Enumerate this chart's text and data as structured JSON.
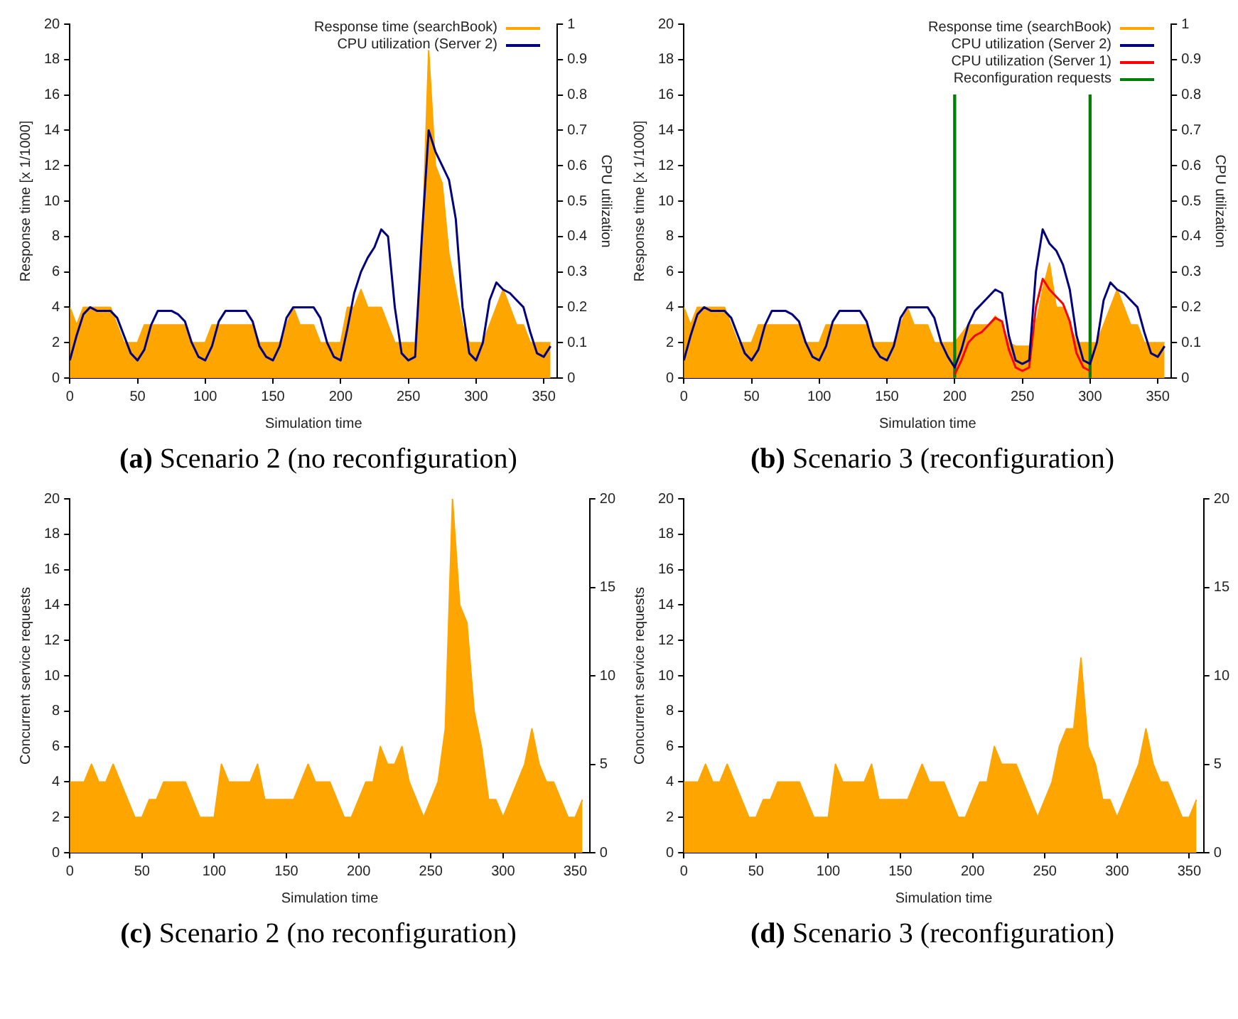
{
  "chart_data": [
    {
      "type": "area",
      "title": "(a) Scenario 2 (no reconfiguration)",
      "xlabel": "Simulation time",
      "ylabel": "Response time [x 1/1000]",
      "y2label": "CPU utilization",
      "xlim": [
        0,
        360
      ],
      "xticks": [
        0,
        50,
        100,
        150,
        200,
        250,
        300,
        350
      ],
      "ylim": [
        0,
        20
      ],
      "yticks": [
        0,
        2,
        4,
        6,
        8,
        10,
        12,
        14,
        16,
        18,
        20
      ],
      "y2lim": [
        0,
        1
      ],
      "y2ticks": [
        0,
        0.1,
        0.2,
        0.3,
        0.4,
        0.5,
        0.6,
        0.7,
        0.8,
        0.9,
        1
      ],
      "legend": "top right",
      "x": [
        0,
        5,
        10,
        15,
        20,
        25,
        30,
        35,
        40,
        45,
        50,
        55,
        60,
        65,
        70,
        75,
        80,
        85,
        90,
        95,
        100,
        105,
        110,
        115,
        120,
        125,
        130,
        135,
        140,
        145,
        150,
        155,
        160,
        165,
        170,
        175,
        180,
        185,
        190,
        195,
        200,
        205,
        210,
        215,
        220,
        225,
        230,
        235,
        240,
        245,
        250,
        255,
        260,
        265,
        270,
        275,
        280,
        285,
        290,
        295,
        300,
        305,
        310,
        315,
        320,
        325,
        330,
        335,
        340,
        345,
        350,
        355
      ],
      "series": [
        {
          "name": "Response time (searchBook)",
          "color": "#ffa500",
          "values": [
            4,
            3,
            4,
            4,
            4,
            4,
            4,
            3,
            2,
            2,
            2,
            3,
            3,
            3,
            3,
            3,
            3,
            3,
            2,
            2,
            2,
            3,
            3,
            3,
            3,
            3,
            3,
            3,
            2,
            2,
            2,
            2,
            3,
            4,
            3,
            3,
            3,
            2,
            2,
            2,
            2,
            4,
            4,
            5,
            4,
            4,
            4,
            3,
            2,
            2,
            2,
            2,
            7,
            18.5,
            12,
            11,
            7,
            5,
            3,
            2,
            2,
            2,
            3,
            4,
            5,
            4,
            3,
            3,
            2,
            2,
            2,
            2
          ]
        },
        {
          "name": "CPU utilization (Server 2)",
          "type": "line",
          "axis": "y2",
          "color": "#000080",
          "values": [
            0.05,
            0.12,
            0.18,
            0.2,
            0.19,
            0.19,
            0.19,
            0.17,
            0.12,
            0.07,
            0.05,
            0.08,
            0.15,
            0.19,
            0.19,
            0.19,
            0.18,
            0.16,
            0.1,
            0.06,
            0.05,
            0.09,
            0.16,
            0.19,
            0.19,
            0.19,
            0.19,
            0.16,
            0.09,
            0.06,
            0.05,
            0.09,
            0.17,
            0.2,
            0.2,
            0.2,
            0.2,
            0.17,
            0.1,
            0.06,
            0.05,
            0.14,
            0.24,
            0.3,
            0.34,
            0.37,
            0.42,
            0.4,
            0.2,
            0.07,
            0.05,
            0.06,
            0.4,
            0.7,
            0.64,
            0.6,
            0.56,
            0.45,
            0.2,
            0.07,
            0.05,
            0.1,
            0.22,
            0.27,
            0.25,
            0.24,
            0.22,
            0.2,
            0.13,
            0.07,
            0.06,
            0.09
          ]
        }
      ]
    },
    {
      "type": "area",
      "title": "(b) Scenario 3 (reconfiguration)",
      "xlabel": "Simulation time",
      "ylabel": "Response time [x 1/1000]",
      "y2label": "CPU utilization",
      "xlim": [
        0,
        360
      ],
      "xticks": [
        0,
        50,
        100,
        150,
        200,
        250,
        300,
        350
      ],
      "ylim": [
        0,
        20
      ],
      "yticks": [
        0,
        2,
        4,
        6,
        8,
        10,
        12,
        14,
        16,
        18,
        20
      ],
      "y2lim": [
        0,
        1
      ],
      "y2ticks": [
        0,
        0.1,
        0.2,
        0.3,
        0.4,
        0.5,
        0.6,
        0.7,
        0.8,
        0.9,
        1
      ],
      "legend": "top right",
      "x": [
        0,
        5,
        10,
        15,
        20,
        25,
        30,
        35,
        40,
        45,
        50,
        55,
        60,
        65,
        70,
        75,
        80,
        85,
        90,
        95,
        100,
        105,
        110,
        115,
        120,
        125,
        130,
        135,
        140,
        145,
        150,
        155,
        160,
        165,
        170,
        175,
        180,
        185,
        190,
        195,
        200,
        205,
        210,
        215,
        220,
        225,
        230,
        235,
        240,
        245,
        250,
        255,
        260,
        265,
        270,
        275,
        280,
        285,
        290,
        295,
        300,
        305,
        310,
        315,
        320,
        325,
        330,
        335,
        340,
        345,
        350,
        355
      ],
      "series": [
        {
          "name": "Response time (searchBook)",
          "color": "#ffa500",
          "values": [
            4,
            3,
            4,
            4,
            4,
            4,
            4,
            3,
            2,
            2,
            2,
            3,
            3,
            3,
            3,
            3,
            3,
            3,
            2,
            2,
            2,
            3,
            3,
            3,
            3,
            3,
            3,
            3,
            2,
            2,
            2,
            2,
            3,
            4,
            3,
            3,
            3,
            2,
            2,
            2,
            2,
            2.5,
            3,
            3,
            3,
            3,
            3.5,
            3,
            2,
            1.8,
            1.8,
            1.8,
            3,
            5,
            6.5,
            4,
            4,
            3,
            2,
            2,
            2,
            2,
            3,
            4,
            5,
            4,
            3,
            3,
            2,
            2,
            2,
            2
          ]
        },
        {
          "name": "CPU utilization (Server 2)",
          "type": "line",
          "axis": "y2",
          "color": "#000080",
          "values": [
            0.05,
            0.12,
            0.18,
            0.2,
            0.19,
            0.19,
            0.19,
            0.17,
            0.12,
            0.07,
            0.05,
            0.08,
            0.15,
            0.19,
            0.19,
            0.19,
            0.18,
            0.16,
            0.1,
            0.06,
            0.05,
            0.09,
            0.16,
            0.19,
            0.19,
            0.19,
            0.19,
            0.16,
            0.09,
            0.06,
            0.05,
            0.09,
            0.17,
            0.2,
            0.2,
            0.2,
            0.2,
            0.17,
            0.1,
            0.06,
            0.03,
            0.08,
            0.15,
            0.19,
            0.21,
            0.23,
            0.25,
            0.24,
            0.12,
            0.05,
            0.04,
            0.05,
            0.3,
            0.42,
            0.38,
            0.36,
            0.32,
            0.25,
            0.12,
            0.05,
            0.04,
            0.1,
            0.22,
            0.27,
            0.25,
            0.24,
            0.22,
            0.2,
            0.13,
            0.07,
            0.06,
            0.09
          ]
        },
        {
          "name": "CPU utilization (Server 1)",
          "type": "line",
          "axis": "y2",
          "color": "#ff0000",
          "x": [
            200,
            205,
            210,
            215,
            220,
            225,
            230,
            235,
            240,
            245,
            250,
            255,
            260,
            265,
            270,
            275,
            280,
            285,
            290,
            295,
            300
          ],
          "values": [
            0.01,
            0.05,
            0.1,
            0.12,
            0.13,
            0.15,
            0.17,
            0.16,
            0.08,
            0.03,
            0.02,
            0.03,
            0.2,
            0.28,
            0.25,
            0.23,
            0.21,
            0.16,
            0.07,
            0.03,
            0.02
          ]
        },
        {
          "name": "Reconfiguration requests",
          "type": "bar",
          "color": "#008000",
          "x": [
            200,
            300
          ],
          "values": [
            16,
            16
          ]
        }
      ]
    },
    {
      "type": "area",
      "title": "(c) Scenario 2 (no reconfiguration)",
      "xlabel": "Simulation time",
      "ylabel": "Concurrent service requests",
      "xlim": [
        0,
        360
      ],
      "xticks": [
        0,
        50,
        100,
        150,
        200,
        250,
        300,
        350
      ],
      "ylim": [
        0,
        20
      ],
      "yticks": [
        0,
        2,
        4,
        6,
        8,
        10,
        12,
        14,
        16,
        18,
        20
      ],
      "y2lim": [
        0,
        20
      ],
      "y2ticks": [
        0,
        5,
        10,
        15,
        20
      ],
      "x": [
        0,
        5,
        10,
        15,
        20,
        25,
        30,
        35,
        40,
        45,
        50,
        55,
        60,
        65,
        70,
        75,
        80,
        85,
        90,
        95,
        100,
        105,
        110,
        115,
        120,
        125,
        130,
        135,
        140,
        145,
        150,
        155,
        160,
        165,
        170,
        175,
        180,
        185,
        190,
        195,
        200,
        205,
        210,
        215,
        220,
        225,
        230,
        235,
        240,
        245,
        250,
        255,
        260,
        265,
        270,
        275,
        280,
        285,
        290,
        295,
        300,
        305,
        310,
        315,
        320,
        325,
        330,
        335,
        340,
        345,
        350,
        355
      ],
      "series": [
        {
          "color": "#ffa500",
          "values": [
            4,
            4,
            4,
            5,
            4,
            4,
            5,
            4,
            3,
            2,
            2,
            3,
            3,
            4,
            4,
            4,
            4,
            3,
            2,
            2,
            2,
            5,
            4,
            4,
            4,
            4,
            5,
            3,
            3,
            3,
            3,
            3,
            4,
            5,
            4,
            4,
            4,
            3,
            2,
            2,
            3,
            4,
            4,
            6,
            5,
            5,
            6,
            4,
            3,
            2,
            3,
            4,
            7,
            20,
            14,
            13,
            8,
            6,
            3,
            3,
            2,
            3,
            4,
            5,
            7,
            5,
            4,
            4,
            3,
            2,
            2,
            3
          ]
        }
      ]
    },
    {
      "type": "area",
      "title": "(d) Scenario 3 (reconfiguration)",
      "xlabel": "Simulation time",
      "ylabel": "Concurrent service requests",
      "xlim": [
        0,
        360
      ],
      "xticks": [
        0,
        50,
        100,
        150,
        200,
        250,
        300,
        350
      ],
      "ylim": [
        0,
        20
      ],
      "yticks": [
        0,
        2,
        4,
        6,
        8,
        10,
        12,
        14,
        16,
        18,
        20
      ],
      "y2lim": [
        0,
        20
      ],
      "y2ticks": [
        0,
        5,
        10,
        15,
        20
      ],
      "x": [
        0,
        5,
        10,
        15,
        20,
        25,
        30,
        35,
        40,
        45,
        50,
        55,
        60,
        65,
        70,
        75,
        80,
        85,
        90,
        95,
        100,
        105,
        110,
        115,
        120,
        125,
        130,
        135,
        140,
        145,
        150,
        155,
        160,
        165,
        170,
        175,
        180,
        185,
        190,
        195,
        200,
        205,
        210,
        215,
        220,
        225,
        230,
        235,
        240,
        245,
        250,
        255,
        260,
        265,
        270,
        275,
        280,
        285,
        290,
        295,
        300,
        305,
        310,
        315,
        320,
        325,
        330,
        335,
        340,
        345,
        350,
        355
      ],
      "series": [
        {
          "color": "#ffa500",
          "values": [
            4,
            4,
            4,
            5,
            4,
            4,
            5,
            4,
            3,
            2,
            2,
            3,
            3,
            4,
            4,
            4,
            4,
            3,
            2,
            2,
            2,
            5,
            4,
            4,
            4,
            4,
            5,
            3,
            3,
            3,
            3,
            3,
            4,
            5,
            4,
            4,
            4,
            3,
            2,
            2,
            3,
            4,
            4,
            6,
            5,
            5,
            5,
            4,
            3,
            2,
            3,
            4,
            6,
            7,
            7,
            11,
            6,
            5,
            3,
            3,
            2,
            3,
            4,
            5,
            7,
            5,
            4,
            4,
            3,
            2,
            2,
            3
          ]
        }
      ]
    }
  ]
}
